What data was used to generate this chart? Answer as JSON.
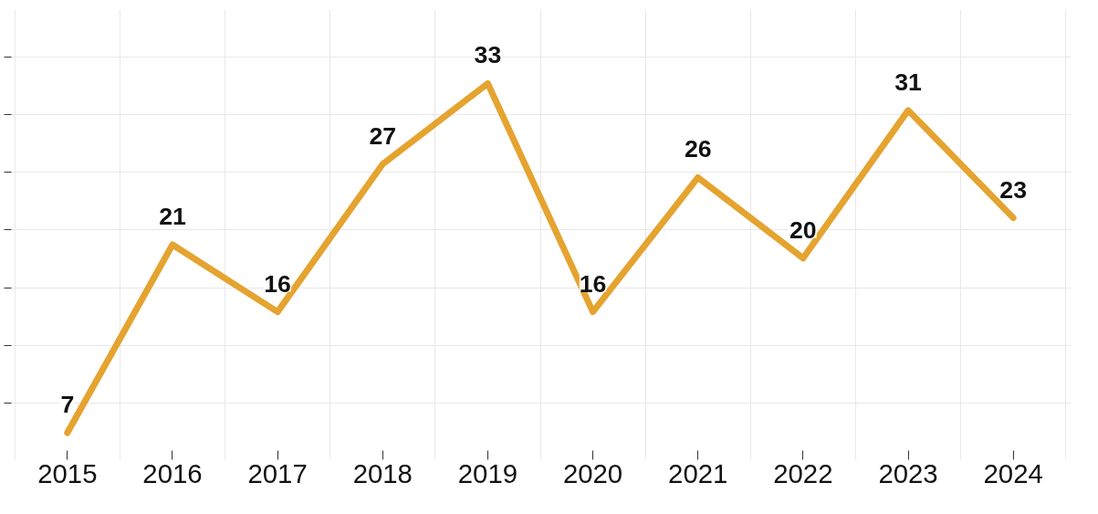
{
  "chart_data": {
    "type": "line",
    "categories": [
      "2015",
      "2016",
      "2017",
      "2018",
      "2019",
      "2020",
      "2021",
      "2022",
      "2023",
      "2024"
    ],
    "series": [
      {
        "color": "#e5a32f",
        "values": [
          7,
          21,
          16,
          27,
          33,
          16,
          26,
          20,
          31,
          23
        ]
      }
    ],
    "ylim": [
      5,
      38.5
    ],
    "yticks": [
      {
        "value": 9.2,
        "label": null
      },
      {
        "value": 13.5,
        "label": null
      },
      {
        "value": 17.8,
        "label": null
      },
      {
        "value": 22.1,
        "label": null
      },
      {
        "value": 26.4,
        "label": null
      },
      {
        "value": 30.7,
        "label": null
      },
      {
        "value": 35.0,
        "label": null
      }
    ],
    "tick_labels": "x",
    "grid": true,
    "data_labels": true,
    "marker": "none",
    "line_style": "solid"
  }
}
